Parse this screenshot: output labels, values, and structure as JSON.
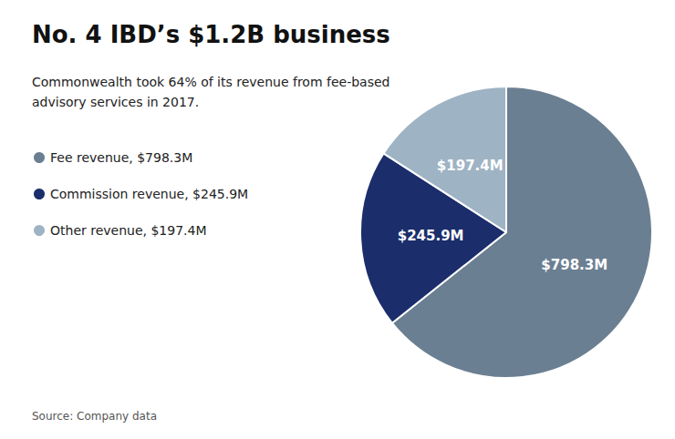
{
  "chart_data": {
    "type": "pie",
    "title": "No. 4 IBD’s $1.2B business",
    "subtitle": "Commonwealth took 64% of its revenue from fee-based\nadvisory services in 2017.",
    "source": "Source: Company data",
    "categories": [
      "Fee revenue, $798.3M",
      "Commission revenue, $245.9M",
      "Other revenue, $197.4M"
    ],
    "values": [
      798.3,
      245.9,
      197.4
    ],
    "value_labels": [
      "$798.3M",
      "$245.9M",
      "$197.4M"
    ],
    "colors": [
      "#6b7f92",
      "#1b2d6b",
      "#9eb3c4"
    ],
    "data_labels": true,
    "legend": "left"
  }
}
